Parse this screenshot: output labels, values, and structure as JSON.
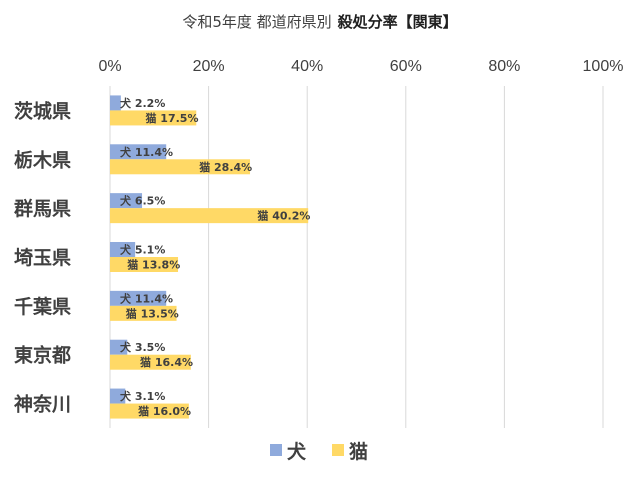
{
  "chart_data": {
    "type": "bar",
    "orientation": "horizontal",
    "title_prefix": "令和5年度 都道府県別",
    "title_suffix": "殺処分率【関東】",
    "xlabel": "",
    "ylabel": "",
    "xlim": [
      0,
      100
    ],
    "x_ticks": [
      "0%",
      "20%",
      "40%",
      "60%",
      "80%",
      "100%"
    ],
    "grid": true,
    "legend_position": "bottom",
    "categories": [
      "茨城県",
      "栃木県",
      "群馬県",
      "埼玉県",
      "千葉県",
      "東京都",
      "神奈川"
    ],
    "series": [
      {
        "name": "犬",
        "color": "#8faadc",
        "values": [
          2.2,
          11.4,
          6.5,
          5.1,
          11.4,
          3.5,
          3.1
        ],
        "labels": [
          "犬 2.2%",
          "犬 11.4%",
          "犬 6.5%",
          "犬 5.1%",
          "犬 11.4%",
          "犬 3.5%",
          "犬 3.1%"
        ]
      },
      {
        "name": "猫",
        "color": "#ffd966",
        "values": [
          17.5,
          28.4,
          40.2,
          13.8,
          13.5,
          16.4,
          16.0
        ],
        "labels": [
          "猫 17.5%",
          "猫 28.4%",
          "猫 40.2%",
          "猫 13.8%",
          "猫 13.5%",
          "猫 16.4%",
          "猫 16.0%"
        ]
      }
    ]
  }
}
